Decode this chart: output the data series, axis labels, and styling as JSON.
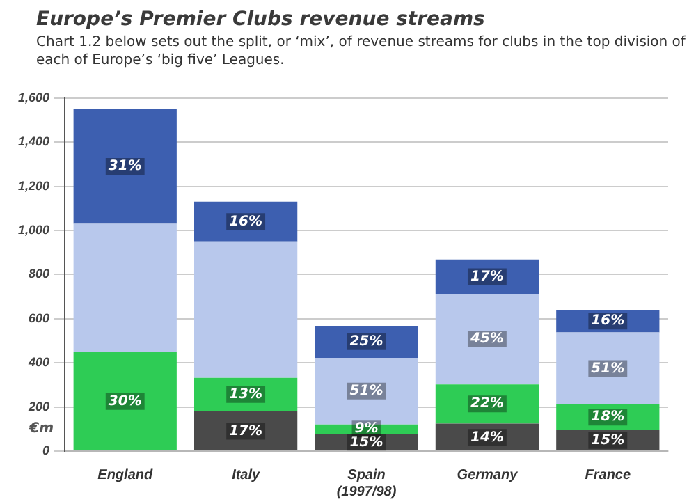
{
  "chart_data": {
    "type": "bar",
    "stacked": true,
    "title": "Europe’s Premier Clubs revenue streams",
    "subtitle": "Chart 1.2 below sets out the split, or ‘mix’, of revenue streams for clubs in the top division of each of Europe’s ‘big five’ Leagues.",
    "ylabel": "€m",
    "categories": [
      "England",
      "Italy",
      "Spain (1997/98)",
      "Germany",
      "France"
    ],
    "series": [
      {
        "color": "#4a4a4a",
        "values": [
          0,
          181,
          79,
          125,
          96
        ]
      },
      {
        "color": "#2ecc55",
        "values": [
          450,
          151,
          42,
          177,
          115
        ]
      },
      {
        "color": "#b8c8ec",
        "values": [
          580,
          618,
          302,
          411,
          327
        ]
      },
      {
        "color": "#3d5fb0",
        "values": [
          520,
          180,
          145,
          155,
          102
        ]
      }
    ],
    "annotations": [
      {
        "text": "30%",
        "x": "England",
        "y": 225
      },
      {
        "text": "31%",
        "x": "England",
        "y": 1290
      },
      {
        "text": "17%",
        "x": "Italy",
        "y": 90
      },
      {
        "text": "13%",
        "x": "Italy",
        "y": 256
      },
      {
        "text": "16%",
        "x": "Italy",
        "y": 1040
      },
      {
        "text": "15%",
        "x": "Spain (1997/98)",
        "y": 40
      },
      {
        "text": "9%",
        "x": "Spain (1997/98)",
        "y": 100
      },
      {
        "text": "51%",
        "x": "Spain (1997/98)",
        "y": 272
      },
      {
        "text": "25%",
        "x": "Spain (1997/98)",
        "y": 496
      },
      {
        "text": "14%",
        "x": "Germany",
        "y": 62
      },
      {
        "text": "22%",
        "x": "Germany",
        "y": 214
      },
      {
        "text": "45%",
        "x": "Germany",
        "y": 508
      },
      {
        "text": "17%",
        "x": "Germany",
        "y": 790
      },
      {
        "text": "15%",
        "x": "France",
        "y": 48
      },
      {
        "text": "18%",
        "x": "France",
        "y": 154
      },
      {
        "text": "51%",
        "x": "France",
        "y": 374
      },
      {
        "text": "16%",
        "x": "France",
        "y": 589
      }
    ],
    "ylim": [
      0,
      1600
    ],
    "yticks": [
      0,
      {
        "value": 200,
        "label": "200"
      },
      {
        "value": 400,
        "label": "400"
      },
      {
        "value": 600,
        "label": "600"
      },
      {
        "value": 800,
        "label": "800"
      },
      {
        "value": 1000,
        "label": "1,000"
      },
      {
        "value": 1200,
        "label": "1,200"
      },
      {
        "value": 1400,
        "label": "1,400"
      },
      {
        "value": 1600,
        "label": "1,600"
      }
    ],
    "grid": "y",
    "legend": false
  }
}
